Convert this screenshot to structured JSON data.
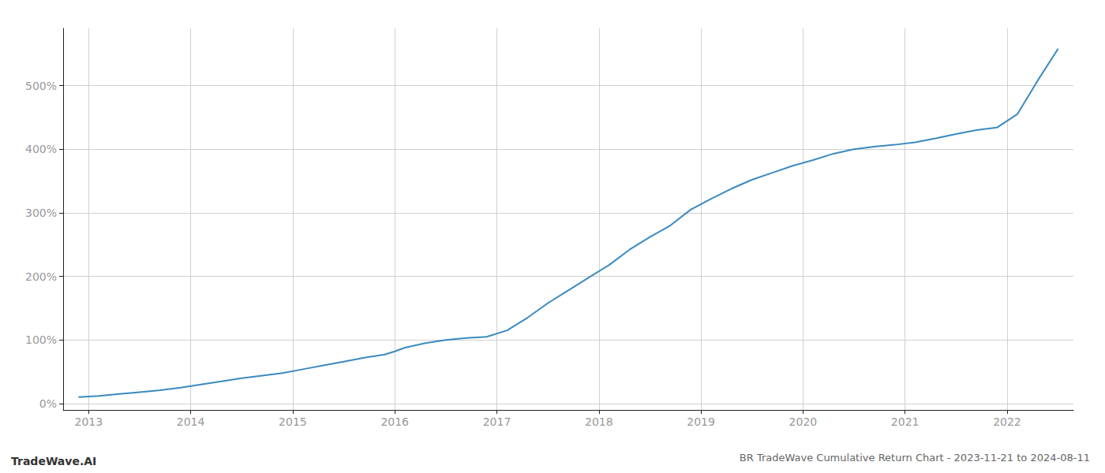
{
  "chart_data": {
    "type": "line",
    "title": "BR TradeWave Cumulative Return Chart - 2023-11-21 to 2024-08-11",
    "annotations": [
      "TradeWave.AI"
    ],
    "color": "#3a8abf",
    "grid": true,
    "x": [
      2012.9,
      2013.1,
      2013.3,
      2013.5,
      2013.7,
      2013.9,
      2014.1,
      2014.3,
      2014.5,
      2014.7,
      2014.9,
      2015.1,
      2015.3,
      2015.5,
      2015.7,
      2015.9,
      2016.0,
      2016.1,
      2016.3,
      2016.5,
      2016.7,
      2016.9,
      2017.1,
      2017.3,
      2017.5,
      2017.7,
      2017.9,
      2018.1,
      2018.3,
      2018.5,
      2018.7,
      2018.9,
      2019.1,
      2019.3,
      2019.5,
      2019.7,
      2019.9,
      2020.1,
      2020.3,
      2020.5,
      2020.7,
      2020.9,
      2021.1,
      2021.3,
      2021.5,
      2021.7,
      2021.9,
      2022.1,
      2022.3,
      2022.5
    ],
    "values": [
      10,
      12,
      15,
      18,
      21,
      25,
      30,
      35,
      40,
      44,
      48,
      54,
      60,
      66,
      72,
      77,
      82,
      88,
      95,
      100,
      103,
      105,
      115,
      135,
      158,
      178,
      198,
      218,
      242,
      262,
      280,
      305,
      322,
      338,
      352,
      363,
      374,
      383,
      393,
      400,
      404,
      407,
      411,
      417,
      424,
      430,
      434,
      455,
      508,
      558
    ],
    "xlim": [
      2012.75,
      2022.65
    ],
    "xticks": [
      2013,
      2014,
      2015,
      2016,
      2017,
      2018,
      2019,
      2020,
      2021,
      2022
    ],
    "ylim": [
      -10,
      590
    ],
    "yticks": [
      {
        "value": 0,
        "label": "0%"
      },
      {
        "value": 100,
        "label": "100%"
      },
      {
        "value": 200,
        "label": "200%"
      },
      {
        "value": 300,
        "label": "300%"
      },
      {
        "value": 400,
        "label": "400%"
      },
      {
        "value": 500,
        "label": "500%"
      }
    ]
  }
}
